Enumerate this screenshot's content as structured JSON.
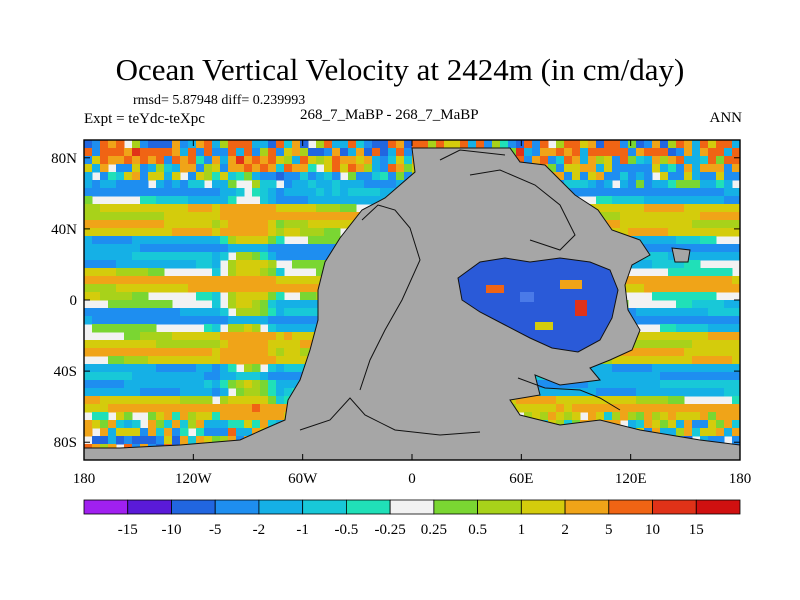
{
  "chart_data": {
    "type": "heatmap",
    "title": "Ocean Vertical Velocity at 2424m (in cm/day)",
    "stats_line": "rmsd= 5.87948 diff= 0.239993",
    "experiment_label": "Expt = teYdc-teXpc",
    "subtitle": "268_7_MaBP - 268_7_MaBP",
    "season": "ANN",
    "x_ticks": [
      "180",
      "120W",
      "60W",
      "0",
      "60E",
      "120E",
      "180"
    ],
    "y_ticks": [
      "80N",
      "40N",
      "0",
      "40S",
      "80S"
    ],
    "xlim": [
      -180,
      180
    ],
    "ylim": [
      -90,
      90
    ],
    "colorbar": {
      "labels": [
        "-15",
        "-10",
        "-5",
        "-2",
        "-1",
        "-0.5",
        "-0.25",
        "0.25",
        "0.5",
        "1",
        "2",
        "5",
        "10",
        "15"
      ],
      "colors": [
        "#a020f0",
        "#5a1ad8",
        "#2166e0",
        "#1e8ef0",
        "#15b0e6",
        "#18c8d8",
        "#20e0b8",
        "#f2f2f2",
        "#7ad632",
        "#a8d21a",
        "#d4cc0c",
        "#f0a418",
        "#f06414",
        "#e03218",
        "#d01010"
      ]
    },
    "land_color": "#a6a6a6"
  }
}
